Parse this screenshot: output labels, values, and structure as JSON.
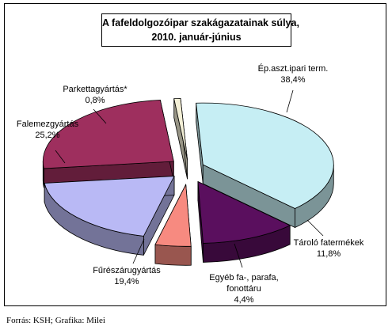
{
  "chart_data": {
    "type": "pie",
    "title_line1": "A fafeldolgozóipar szakágazatainak súlya,",
    "title_line2": "2010. január-június",
    "slices": [
      {
        "name": "Ép.aszt.ipari term.",
        "name_line2": "",
        "value_label": "38,4%",
        "value": 38.4,
        "color": "#c6eef4"
      },
      {
        "name": "Tároló fatermékek",
        "name_line2": "",
        "value_label": "11,8%",
        "value": 11.8,
        "color": "#5a0f5e"
      },
      {
        "name": "Egyéb fa-, parafa,",
        "name_line2": "fonottáru",
        "value_label": "4,4%",
        "value": 4.4,
        "color": "#f78a80"
      },
      {
        "name": "Fűrészárugyártás",
        "name_line2": "",
        "value_label": "19,4%",
        "value": 19.4,
        "color": "#b9b9f5"
      },
      {
        "name": "Falemezgyártás",
        "name_line2": "",
        "value_label": "25,2%",
        "value": 25.2,
        "color": "#9e2f5e"
      },
      {
        "name": "Parkettagyártás*",
        "name_line2": "",
        "value_label": "0,8%",
        "value": 0.8,
        "color": "#f3efd6"
      }
    ]
  },
  "source": "Forrás: KSH; Grafika: Milei"
}
